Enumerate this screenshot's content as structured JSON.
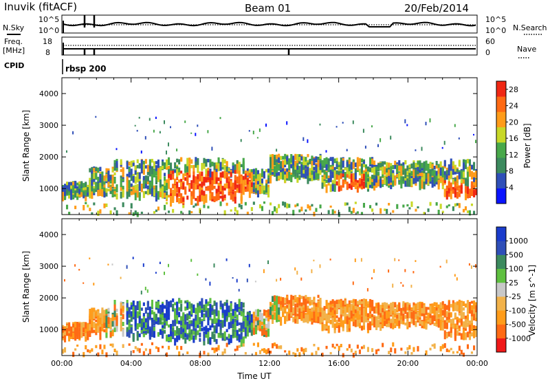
{
  "header": {
    "site": "Inuvik (fitACF)",
    "beam": "Beam 01",
    "date": "20/Feb/2014"
  },
  "strip": {
    "nsky_label": "N.Sky",
    "nsky_ticks": [
      "10^5",
      "10^0"
    ],
    "nsearch_label": "N.Search",
    "nsearch_ticks": [
      "10^5",
      "10^0"
    ],
    "freq_label_1": "Freq.",
    "freq_label_2": "[MHz]",
    "freq_ticks": [
      "18",
      "8"
    ],
    "nave_label": "Nave",
    "nave_ticks": [
      "60",
      "0"
    ],
    "cpid_label": "CPID",
    "cpid_value": "rbsp 200"
  },
  "colors": {
    "power_scale": [
      "#0a14ff",
      "#2f4fb8",
      "#3c8a5e",
      "#48a84a",
      "#c8d828",
      "#ff9c1a",
      "#ff6a14",
      "#f02814"
    ],
    "velocity_scale": [
      "#f01818",
      "#ff6a14",
      "#ff9c1a",
      "#f2b24a",
      "#c8c8c8",
      "#5fc040",
      "#3c8a5e",
      "#2f4fb8",
      "#1a3ccc"
    ]
  },
  "chart_data": [
    {
      "type": "heatmap",
      "name": "power",
      "title": "",
      "xlabel": "",
      "ylabel": "Slant Range [km]",
      "x_ticks": [
        "00:00",
        "04:00",
        "08:00",
        "12:00",
        "16:00",
        "20:00",
        "00:00"
      ],
      "x_range_hours": [
        0,
        24
      ],
      "y_ticks": [
        1000,
        2000,
        3000,
        4000
      ],
      "ylim": [
        180,
        4500
      ],
      "colorbar_label": "Power [dB]",
      "colorbar_ticks": [
        4,
        8,
        12,
        16,
        20,
        24,
        28
      ],
      "colorbar_range": [
        0,
        30
      ]
    },
    {
      "type": "heatmap",
      "name": "velocity",
      "title": "",
      "xlabel": "Time UT",
      "ylabel": "Slant Range [km]",
      "x_ticks": [
        "00:00",
        "04:00",
        "08:00",
        "12:00",
        "16:00",
        "20:00",
        "00:00"
      ],
      "x_range_hours": [
        0,
        24
      ],
      "y_ticks": [
        1000,
        2000,
        3000,
        4000
      ],
      "ylim": [
        180,
        4500
      ],
      "colorbar_label": "Velocity [m s^-1]",
      "colorbar_ticks": [
        "1000",
        "500",
        "100",
        "25",
        "-25",
        "-100",
        "-500",
        "-1000"
      ]
    }
  ]
}
